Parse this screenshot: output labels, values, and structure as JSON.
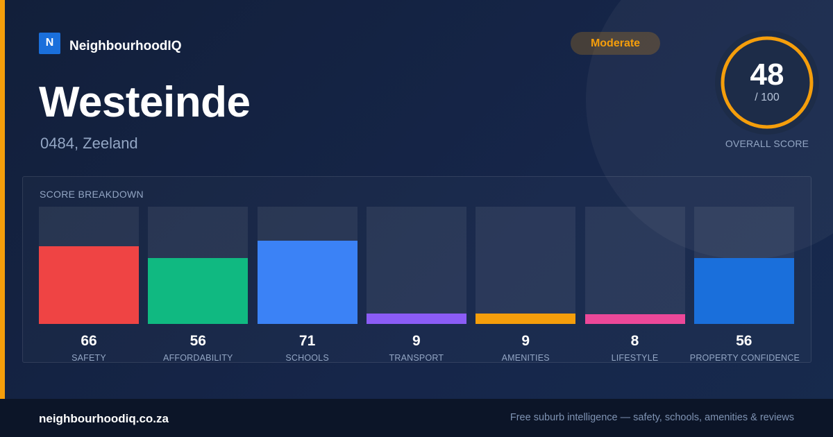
{
  "brand": {
    "logo_letter": "N",
    "name": "NeighbourhoodIQ",
    "color": "#1a6fdb"
  },
  "header": {
    "title": "Westeinde",
    "subtitle": "0484, Zeeland"
  },
  "rating": {
    "label": "Moderate",
    "color": "#f59e0b"
  },
  "overall": {
    "score": "48",
    "max": "/ 100",
    "label": "OVERALL SCORE",
    "fraction": 0.48
  },
  "breakdown": {
    "title": "SCORE BREAKDOWN",
    "max": 100,
    "items": [
      {
        "label": "SAFETY",
        "value": 66,
        "color": "#ef4444"
      },
      {
        "label": "AFFORDABILITY",
        "value": 56,
        "color": "#10b981"
      },
      {
        "label": "SCHOOLS",
        "value": 71,
        "color": "#3b82f6"
      },
      {
        "label": "TRANSPORT",
        "value": 9,
        "color": "#8b5cf6"
      },
      {
        "label": "AMENITIES",
        "value": 9,
        "color": "#f59e0b"
      },
      {
        "label": "LIFESTYLE",
        "value": 8,
        "color": "#ec4899"
      },
      {
        "label": "PROPERTY CONFIDENCE",
        "value": 56,
        "color": "#1a6fdb"
      }
    ]
  },
  "footer": {
    "site": "neighbourhoodiq.co.za",
    "tagline": "Free suburb intelligence — safety, schools, amenities & reviews"
  }
}
